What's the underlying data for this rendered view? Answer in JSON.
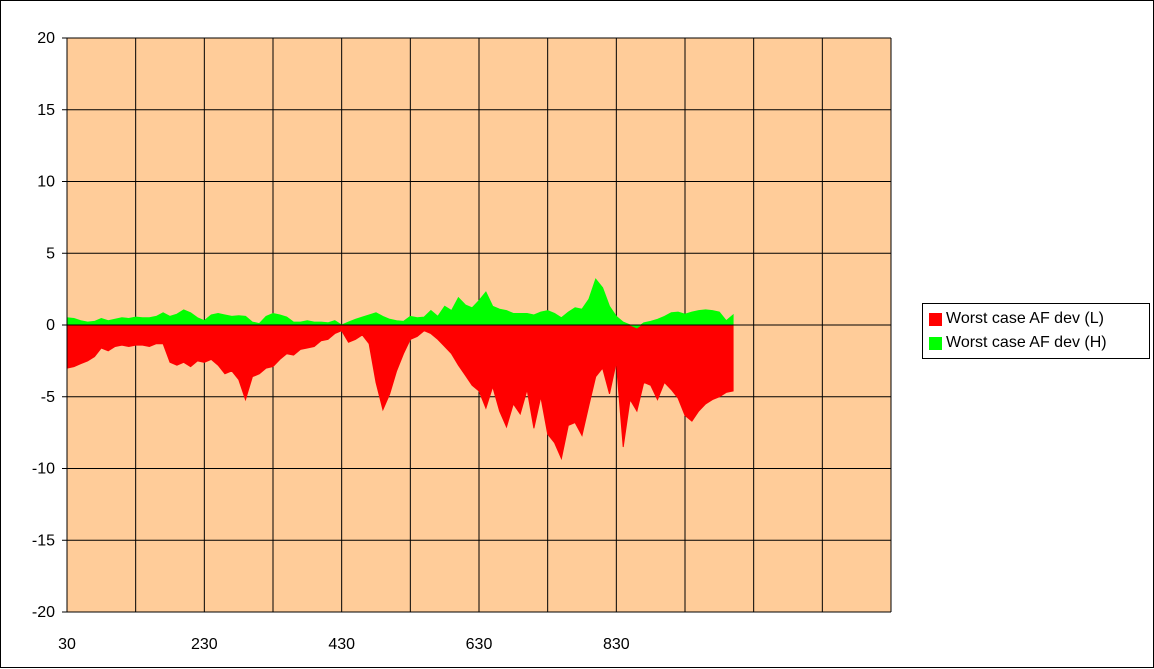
{
  "chart_data": {
    "type": "area",
    "title": "",
    "xlabel": "",
    "ylabel": "",
    "xlim": [
      30,
      1230
    ],
    "ylim": [
      -20,
      20
    ],
    "x_ticks": [
      30,
      230,
      430,
      630,
      830
    ],
    "y_ticks": [
      20,
      15,
      10,
      5,
      0,
      -5,
      -10,
      -15,
      -20
    ],
    "grid": true,
    "plot_background": "#FFCC99",
    "legend_position": "right",
    "series": [
      {
        "name": "Worst case AF dev (L)",
        "color": "#FF0000",
        "x": [
          30,
          40,
          50,
          60,
          70,
          80,
          90,
          100,
          110,
          120,
          130,
          140,
          150,
          160,
          170,
          180,
          190,
          200,
          210,
          220,
          230,
          240,
          250,
          260,
          270,
          280,
          290,
          300,
          310,
          320,
          330,
          340,
          350,
          360,
          370,
          380,
          390,
          400,
          410,
          420,
          430,
          440,
          450,
          460,
          470,
          480,
          490,
          500,
          510,
          520,
          530,
          540,
          550,
          560,
          570,
          580,
          590,
          600,
          610,
          620,
          630,
          640,
          650,
          660,
          670,
          680,
          690,
          700,
          710,
          720,
          730,
          740,
          750,
          760,
          770,
          780,
          790,
          800,
          810,
          820,
          830,
          840,
          850,
          860,
          870,
          880,
          890,
          900,
          910,
          920,
          930,
          940,
          950,
          960,
          970,
          980,
          990,
          1000
        ],
        "values": [
          -3.0,
          -2.9,
          -2.7,
          -2.5,
          -2.2,
          -1.6,
          -1.8,
          -1.5,
          -1.4,
          -1.5,
          -1.4,
          -1.4,
          -1.5,
          -1.3,
          -1.3,
          -2.6,
          -2.8,
          -2.6,
          -2.9,
          -2.5,
          -2.6,
          -2.4,
          -2.8,
          -3.4,
          -3.2,
          -3.8,
          -5.2,
          -3.6,
          -3.4,
          -3.0,
          -2.9,
          -2.4,
          -2.0,
          -2.1,
          -1.7,
          -1.6,
          -1.5,
          -1.1,
          -1.0,
          -0.6,
          -0.4,
          -1.2,
          -1.0,
          -0.7,
          -1.3,
          -4.0,
          -5.9,
          -4.8,
          -3.2,
          -2.0,
          -1.0,
          -0.8,
          -0.4,
          -0.6,
          -1.0,
          -1.5,
          -2.0,
          -2.8,
          -3.5,
          -4.2,
          -4.6,
          -5.8,
          -4.3,
          -6.0,
          -7.1,
          -5.5,
          -6.2,
          -4.5,
          -7.2,
          -5.0,
          -7.6,
          -8.2,
          -9.3,
          -7.0,
          -6.8,
          -7.7,
          -5.6,
          -3.6,
          -3.0,
          -4.8,
          -2.6,
          -8.5,
          -5.2,
          -6.0,
          -4.0,
          -4.2,
          -5.2,
          -4.0,
          -4.5,
          -5.1,
          -6.3,
          -6.7,
          -6.0,
          -5.5,
          -5.2,
          -5.0,
          -4.7,
          -4.6
        ]
      },
      {
        "name": "Worst case AF dev (H)",
        "color": "#00FF00",
        "x": [
          30,
          40,
          50,
          60,
          70,
          80,
          90,
          100,
          110,
          120,
          130,
          140,
          150,
          160,
          170,
          180,
          190,
          200,
          210,
          220,
          230,
          240,
          250,
          260,
          270,
          280,
          290,
          300,
          310,
          320,
          330,
          340,
          350,
          360,
          370,
          380,
          390,
          400,
          410,
          420,
          430,
          440,
          450,
          460,
          470,
          480,
          490,
          500,
          510,
          520,
          530,
          540,
          550,
          560,
          570,
          580,
          590,
          600,
          610,
          620,
          630,
          640,
          650,
          660,
          670,
          680,
          690,
          700,
          710,
          720,
          730,
          740,
          750,
          760,
          770,
          780,
          790,
          800,
          810,
          820,
          830,
          840,
          850,
          860,
          870,
          880,
          890,
          900,
          910,
          920,
          930,
          940,
          950,
          960,
          970,
          980,
          990,
          1000
        ],
        "values": [
          0.5,
          0.45,
          0.3,
          0.2,
          0.25,
          0.45,
          0.3,
          0.4,
          0.5,
          0.45,
          0.55,
          0.5,
          0.5,
          0.6,
          0.85,
          0.6,
          0.75,
          1.05,
          0.85,
          0.5,
          0.3,
          0.7,
          0.8,
          0.7,
          0.6,
          0.65,
          0.6,
          0.2,
          0.1,
          0.6,
          0.8,
          0.7,
          0.55,
          0.2,
          0.2,
          0.3,
          0.2,
          0.2,
          0.15,
          0.3,
          0.0,
          0.2,
          0.4,
          0.55,
          0.7,
          0.85,
          0.6,
          0.4,
          0.3,
          0.25,
          0.6,
          0.5,
          0.55,
          1.0,
          0.6,
          1.3,
          1.0,
          1.9,
          1.4,
          1.2,
          1.7,
          2.3,
          1.3,
          1.1,
          1.0,
          0.8,
          0.8,
          0.8,
          0.7,
          0.9,
          1.0,
          0.8,
          0.5,
          0.9,
          1.2,
          1.1,
          1.8,
          3.2,
          2.6,
          1.3,
          0.6,
          0.2,
          0.0,
          -0.2,
          0.15,
          0.25,
          0.4,
          0.6,
          0.85,
          0.9,
          0.75,
          0.9,
          1.0,
          1.05,
          1.0,
          0.9,
          0.3,
          0.7
        ]
      }
    ]
  }
}
